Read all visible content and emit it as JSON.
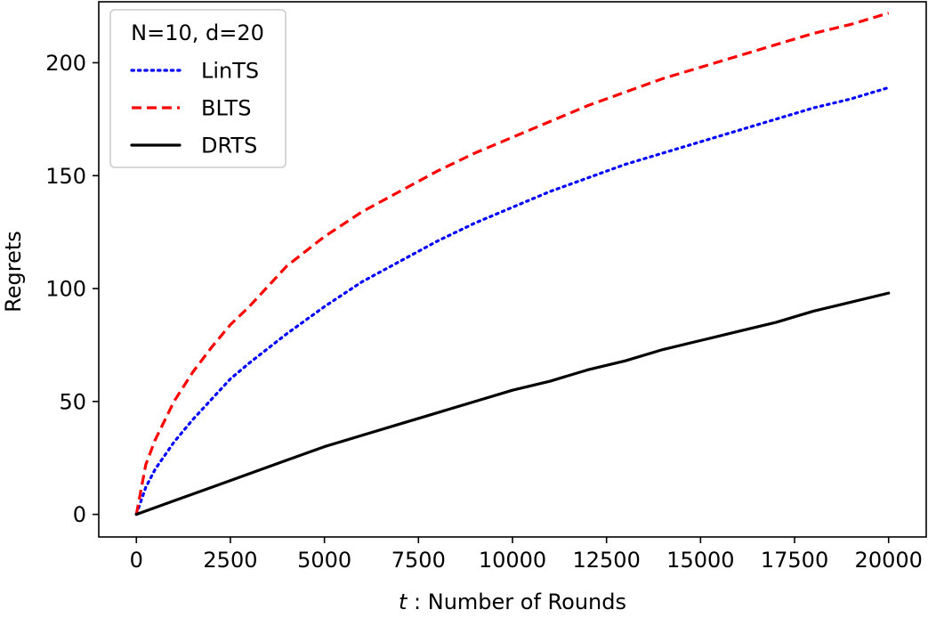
{
  "chart_data": {
    "type": "line",
    "title": "",
    "xlabel_var": "t",
    "xlabel_rest": " : Number of Rounds",
    "ylabel": "Regrets",
    "xlim": [
      -1000,
      21000
    ],
    "ylim": [
      -10,
      227
    ],
    "xticks": [
      0,
      2500,
      5000,
      7500,
      10000,
      12500,
      15000,
      17500,
      20000
    ],
    "xtick_labels": [
      "0",
      "2500",
      "5000",
      "7500",
      "10000",
      "12500",
      "15000",
      "17500",
      "20000"
    ],
    "yticks": [
      0,
      50,
      100,
      150,
      200
    ],
    "ytick_labels": [
      "0",
      "50",
      "100",
      "150",
      "200"
    ],
    "grid": false,
    "legend": {
      "title": "N=10, d=20",
      "placement": "top-left"
    },
    "series": [
      {
        "name": "LinTS",
        "color": "#0000ff",
        "style": "dotted",
        "x": [
          0,
          250,
          500,
          1000,
          1500,
          2000,
          2500,
          3000,
          4000,
          5000,
          6000,
          7000,
          8000,
          9000,
          10000,
          11000,
          12000,
          13000,
          14000,
          15000,
          16000,
          17000,
          18000,
          19000,
          20000
        ],
        "y": [
          0,
          12,
          20,
          32,
          42,
          51,
          60,
          67,
          80,
          92,
          103,
          112,
          121,
          129,
          136,
          143,
          149,
          155,
          160,
          165,
          170,
          175,
          180,
          184,
          189
        ]
      },
      {
        "name": "BLTS",
        "color": "#ff0000",
        "style": "dashed",
        "x": [
          0,
          250,
          500,
          1000,
          1500,
          2000,
          2500,
          3000,
          4000,
          5000,
          6000,
          7000,
          8000,
          9000,
          10000,
          11000,
          12000,
          13000,
          14000,
          15000,
          16000,
          17000,
          18000,
          19000,
          20000
        ],
        "y": [
          0,
          22,
          33,
          50,
          63,
          74,
          84,
          92,
          110,
          123,
          134,
          143,
          152,
          160,
          167,
          174,
          181,
          187,
          193,
          198,
          203,
          208,
          213,
          217,
          222
        ]
      },
      {
        "name": "DRTS",
        "color": "#000000",
        "style": "solid",
        "x": [
          0,
          1000,
          2000,
          3000,
          4000,
          5000,
          6000,
          7000,
          8000,
          9000,
          10000,
          11000,
          12000,
          13000,
          14000,
          15000,
          16000,
          17000,
          18000,
          19000,
          20000
        ],
        "y": [
          0,
          6,
          12,
          18,
          24,
          30,
          35,
          40,
          45,
          50,
          55,
          59,
          64,
          68,
          73,
          77,
          81,
          85,
          90,
          94,
          98
        ]
      }
    ]
  }
}
